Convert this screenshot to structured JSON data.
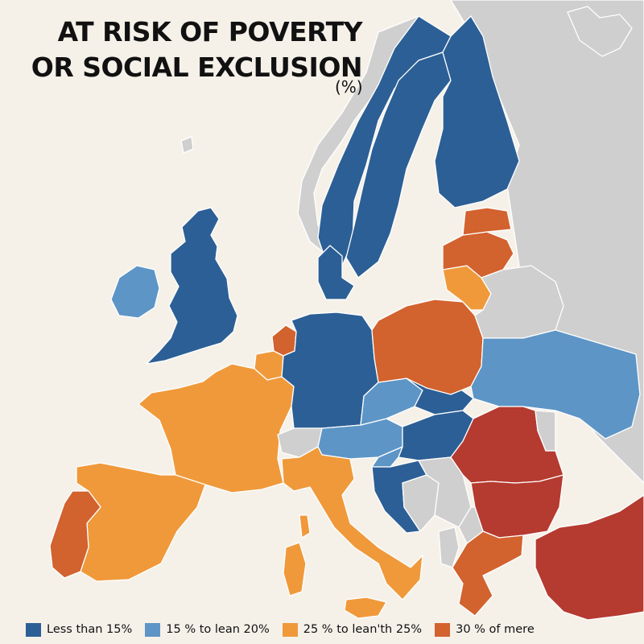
{
  "title_line1": "AT RISK OF POVERTY",
  "title_line2": "OR SOCIAL EXCLUSION",
  "unit": "(%)",
  "colors": {
    "background": "#f5f1e9",
    "non_data": "#cfcfcf",
    "border": "#ffffff"
  },
  "legend": [
    {
      "label": "Less than 15%",
      "color": "#2c5f95"
    },
    {
      "label": "15 % to lean 20%",
      "color": "#5d95c6"
    },
    {
      "label": "25 % to lean'th 25%",
      "color": "#f0993a"
    },
    {
      "label": "30 % of mere",
      "color": "#d2622e"
    }
  ],
  "extra_color": {
    "name": "highest class (unlabeled)",
    "color": "#b53a30"
  },
  "regions": [
    {
      "name": "Norway",
      "cls": 0
    },
    {
      "name": "Sweden",
      "cls": 0
    },
    {
      "name": "Finland",
      "cls": 0
    },
    {
      "name": "Denmark",
      "cls": 0
    },
    {
      "name": "United Kingdom",
      "cls": 0
    },
    {
      "name": "Ireland",
      "cls": 1
    },
    {
      "name": "Netherlands",
      "cls": 3
    },
    {
      "name": "Belgium",
      "cls": 2
    },
    {
      "name": "France",
      "cls": 2
    },
    {
      "name": "Spain",
      "cls": 2
    },
    {
      "name": "Portugal",
      "cls": 3
    },
    {
      "name": "Germany",
      "cls": 0
    },
    {
      "name": "Switzerland",
      "cls": -1
    },
    {
      "name": "Austria",
      "cls": 1
    },
    {
      "name": "Czechia",
      "cls": 1
    },
    {
      "name": "Slovakia",
      "cls": 0
    },
    {
      "name": "Hungary",
      "cls": 0
    },
    {
      "name": "Slovenia",
      "cls": 1
    },
    {
      "name": "Croatia",
      "cls": 0
    },
    {
      "name": "Bosnia and Herzegovina",
      "cls": -1
    },
    {
      "name": "Serbia",
      "cls": -1
    },
    {
      "name": "Italy",
      "cls": 2
    },
    {
      "name": "Sardinia",
      "cls": 2
    },
    {
      "name": "Corsica",
      "cls": 2
    },
    {
      "name": "Sicily",
      "cls": 2
    },
    {
      "name": "Poland",
      "cls": 3
    },
    {
      "name": "Lithuania",
      "cls": 2
    },
    {
      "name": "Latvia",
      "cls": 3
    },
    {
      "name": "Estonia",
      "cls": 3
    },
    {
      "name": "Belarus",
      "cls": -1
    },
    {
      "name": "Ukraine",
      "cls": 1
    },
    {
      "name": "Romania",
      "cls": 4
    },
    {
      "name": "Bulgaria",
      "cls": 4
    },
    {
      "name": "Moldova",
      "cls": -1
    },
    {
      "name": "Greece",
      "cls": 3
    },
    {
      "name": "Turkey",
      "cls": 4
    },
    {
      "name": "North Macedonia",
      "cls": -1
    },
    {
      "name": "Albania",
      "cls": -1
    }
  ]
}
